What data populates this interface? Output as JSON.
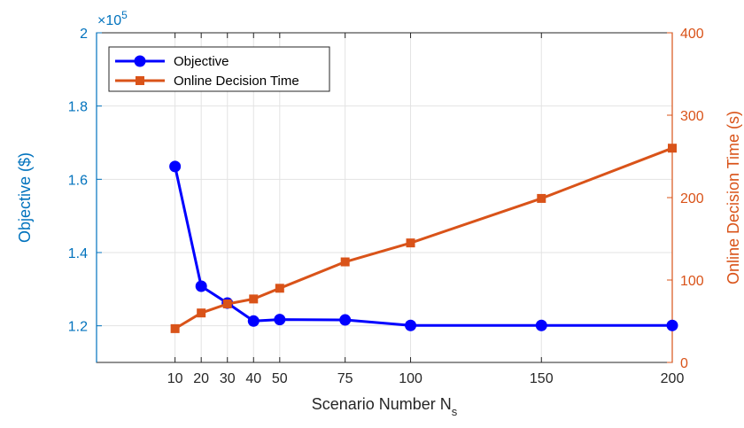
{
  "chart_data": {
    "type": "line",
    "x": [
      10,
      20,
      30,
      40,
      50,
      75,
      100,
      150,
      200
    ],
    "xlabel": "Scenario Number N",
    "xlabel_subscript": "s",
    "xlim": [
      -20,
      200
    ],
    "xticks": [
      10,
      20,
      30,
      40,
      50,
      75,
      100,
      150,
      200
    ],
    "grid": true,
    "legend_position": "top-left",
    "left_axis": {
      "label": "Objective ($)",
      "lim": [
        1.1,
        2.0
      ],
      "ticks": [
        1.2,
        1.4,
        1.6,
        1.8,
        2.0
      ],
      "tick_labels": [
        "1.2",
        "1.4",
        "1.6",
        "1.8",
        "2"
      ],
      "exponent_base": "×10",
      "exponent_power": "5",
      "color": "#0072BD"
    },
    "right_axis": {
      "label": "Online Decision Time (s)",
      "lim": [
        0,
        400
      ],
      "ticks": [
        0,
        100,
        200,
        300,
        400
      ],
      "tick_labels": [
        "0",
        "100",
        "200",
        "300",
        "400"
      ],
      "color": "#D95319"
    },
    "series": [
      {
        "name": "Objective",
        "axis": "left",
        "color": "#0000FF",
        "marker": "circle",
        "values": [
          1.635,
          1.308,
          1.262,
          1.213,
          1.217,
          1.216,
          1.201,
          1.201,
          1.201
        ]
      },
      {
        "name": "Online Decision Time",
        "axis": "right",
        "color": "#D95319",
        "marker": "square",
        "values": [
          41,
          60,
          71,
          77,
          90,
          122,
          145,
          199,
          260
        ]
      }
    ]
  }
}
